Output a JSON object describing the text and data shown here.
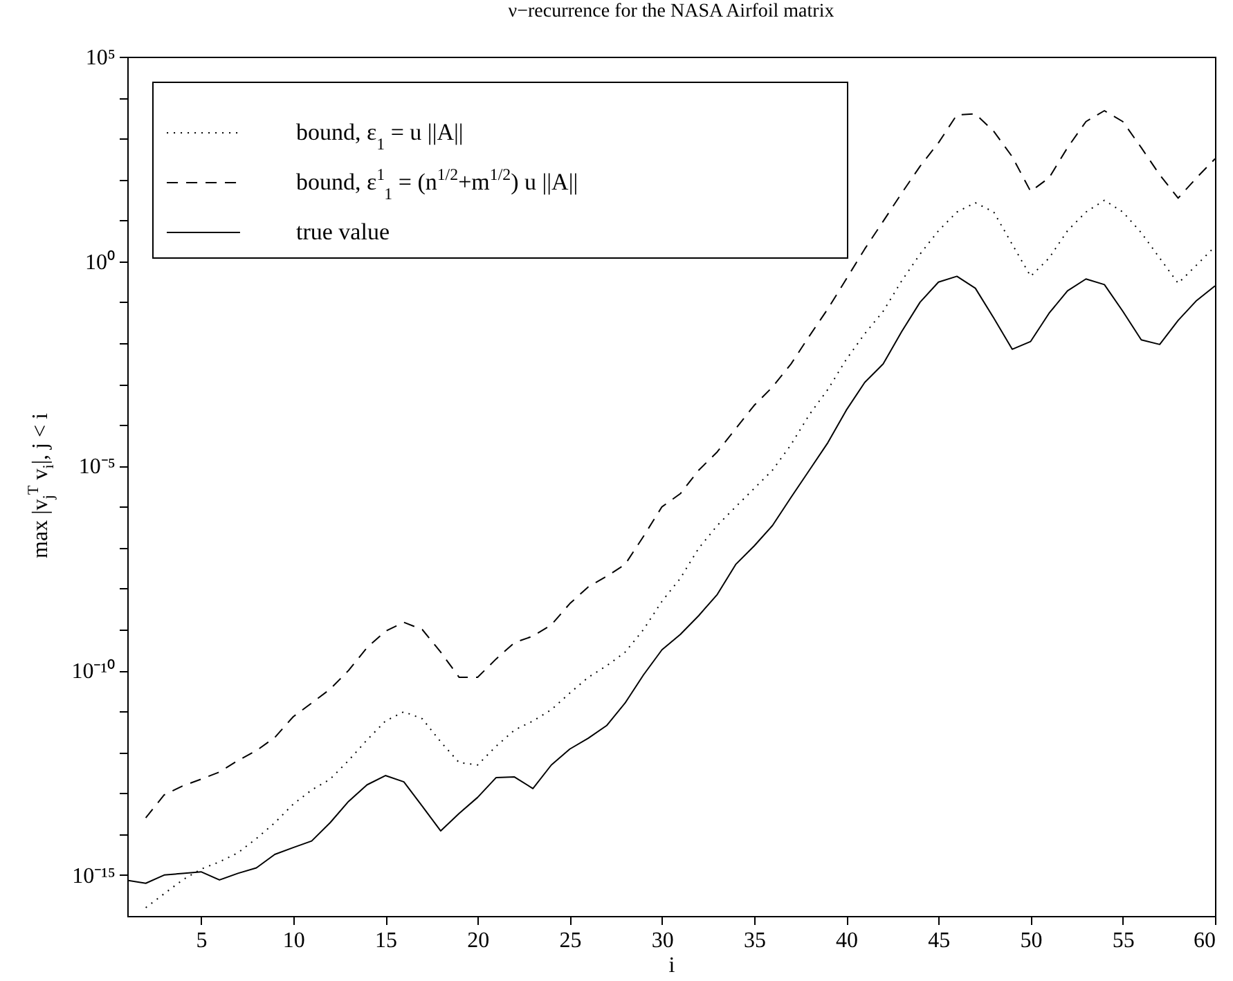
{
  "chart_data": {
    "type": "line",
    "title": "ν−recurrence for the NASA Airfoil matrix",
    "xlabel": "i",
    "ylabel": "max |v$_{j}$$^{T}$ v$_{i}$|, j < i",
    "x": [
      1,
      2,
      3,
      4,
      5,
      6,
      7,
      8,
      9,
      10,
      11,
      12,
      13,
      14,
      15,
      16,
      17,
      18,
      19,
      20,
      21,
      22,
      23,
      24,
      25,
      26,
      27,
      28,
      29,
      30,
      31,
      32,
      33,
      34,
      35,
      36,
      37,
      38,
      39,
      40,
      41,
      42,
      43,
      44,
      45,
      46,
      47,
      48,
      49,
      50,
      51,
      52,
      53,
      54,
      55,
      56,
      57,
      58,
      59,
      60
    ],
    "xlim": [
      1,
      60
    ],
    "xticks": [
      5,
      10,
      15,
      20,
      25,
      30,
      35,
      40,
      45,
      50,
      55,
      60
    ],
    "ylim": [
      1e-16,
      100000.0
    ],
    "log": "y",
    "yticks": [
      {
        "value": 1e-15,
        "label": "10⁻¹⁵"
      },
      {
        "value": 1e-14,
        "label": null
      },
      {
        "value": 1e-13,
        "label": null
      },
      {
        "value": 1e-12,
        "label": null
      },
      {
        "value": 1e-11,
        "label": null
      },
      {
        "value": 1e-10,
        "label": "10⁻¹⁰"
      },
      {
        "value": 1e-09,
        "label": null
      },
      {
        "value": 1e-08,
        "label": null
      },
      {
        "value": 1e-07,
        "label": null
      },
      {
        "value": 1e-06,
        "label": null
      },
      {
        "value": 1e-05,
        "label": "10⁻⁵"
      },
      {
        "value": 0.0001,
        "label": null
      },
      {
        "value": 0.001,
        "label": null
      },
      {
        "value": 0.01,
        "label": null
      },
      {
        "value": 0.1,
        "label": null
      },
      {
        "value": 1,
        "label": "10⁰"
      },
      {
        "value": 10,
        "label": null
      },
      {
        "value": 100,
        "label": null
      },
      {
        "value": 1000,
        "label": null
      },
      {
        "value": 10000,
        "label": null
      },
      {
        "value": 100000,
        "label": "10⁵"
      }
    ],
    "legend": "top left",
    "series": [
      {
        "name": "bound, ε$_{1}$ =  u ||A||",
        "color": "#000000",
        "line_style": "dotted",
        "values": [
          null,
          1.6e-16,
          3.5e-16,
          7.6e-16,
          1.4e-15,
          2.1e-15,
          3.5e-15,
          7.8e-15,
          1.9e-14,
          5.4e-14,
          1.2e-13,
          2.2e-13,
          6.3e-13,
          2e-12,
          5.8e-12,
          9.8e-12,
          6.6e-12,
          1.8e-12,
          5.6e-13,
          4.9e-13,
          1.4e-12,
          3.5e-12,
          5.8e-12,
          1.1e-11,
          2.8e-11,
          6.8e-11,
          1.3e-10,
          2.8e-10,
          1e-09,
          4.9e-09,
          1.8e-08,
          9.8e-08,
          3.5e-07,
          1e-06,
          2.8e-06,
          7.9e-06,
          3.3e-05,
          0.00018,
          0.00074,
          0.004,
          0.017,
          0.06,
          0.33,
          1.5,
          5.6,
          16,
          27,
          16,
          2.6,
          0.43,
          1.2,
          5.6,
          16,
          31,
          16,
          5,
          1.2,
          0.29,
          0.81,
          2.3
        ]
      },
      {
        "name": "bound, ε$^{1}$$_{1}$ = (n$^{1/2}$+m$^{1/2}$) u ||A||",
        "color": "#000000",
        "line_style": "dashed",
        "values": [
          null,
          2.5e-14,
          9.1e-14,
          1.5e-13,
          2.2e-13,
          3.3e-13,
          6.3e-13,
          1.1e-12,
          2.3e-12,
          7.4e-12,
          1.6e-11,
          3.5e-11,
          1e-10,
          3.6e-10,
          9.1e-10,
          1.5e-09,
          1e-09,
          2.8e-10,
          6.8e-11,
          6.8e-11,
          1.9e-10,
          4.8e-10,
          6.9e-10,
          1.3e-09,
          4.3e-09,
          1.1e-08,
          2e-08,
          3.9e-08,
          1.9e-07,
          1e-06,
          2.1e-06,
          7.9e-06,
          2.2e-05,
          8.1e-05,
          0.0003,
          0.00085,
          0.0031,
          0.015,
          0.069,
          0.37,
          2,
          9.5,
          46,
          210,
          790,
          3800,
          4000,
          1500,
          360,
          51,
          110,
          600,
          2600,
          4800,
          2600,
          600,
          130,
          35,
          110,
          320
        ]
      },
      {
        "name": "true value",
        "color": "#000000",
        "line_style": "solid",
        "values": [
          7.4e-16,
          6.3e-16,
          1e-15,
          1.1e-15,
          1.2e-15,
          7.6e-16,
          1.1e-15,
          1.5e-15,
          3.2e-15,
          4.7e-15,
          6.8e-15,
          1.9e-14,
          6.3e-14,
          1.6e-13,
          2.7e-13,
          1.9e-13,
          4.8e-14,
          1.2e-14,
          3.2e-14,
          7.9e-14,
          2.4e-13,
          2.5e-13,
          1.3e-13,
          4.9e-13,
          1.2e-12,
          2.2e-12,
          4.5e-12,
          1.6e-11,
          7.8e-11,
          3.2e-10,
          7.6e-10,
          2.2e-09,
          7.2e-09,
          3.9e-08,
          1.1e-07,
          3.5e-07,
          1.7e-06,
          7.9e-06,
          3.7e-05,
          0.00023,
          0.0011,
          0.0031,
          0.019,
          0.1,
          0.31,
          0.43,
          0.22,
          0.041,
          0.0071,
          0.011,
          0.054,
          0.19,
          0.37,
          0.27,
          0.06,
          0.012,
          0.0093,
          0.036,
          0.11,
          0.25
        ]
      }
    ]
  }
}
